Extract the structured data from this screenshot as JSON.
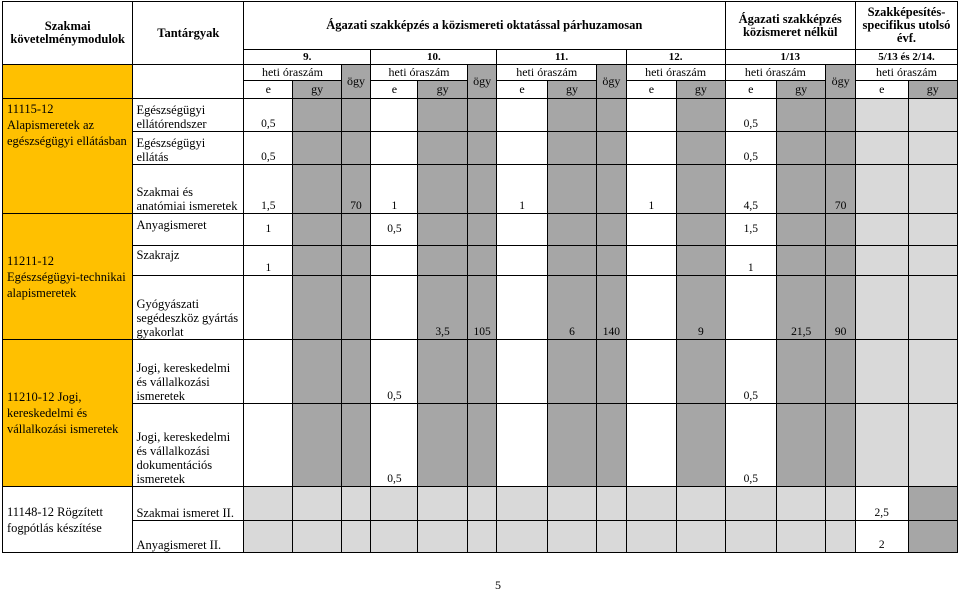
{
  "header": {
    "modules_title": "Szakmai követelménymodulok",
    "subjects_title": "Tantárgyak",
    "parallel_title": "Ágazati szakképzés a közismereti oktatással párhuzamosan",
    "without_title": "Ágazati szakképzés közismeret nélkül",
    "specific_title": "Szakképesítés-specifikus utolsó évf.",
    "grades": [
      "9.",
      "10.",
      "11.",
      "12.",
      "1/13",
      "5/13 és 2/14."
    ],
    "heti": "heti óraszám",
    "ogy": "ögy",
    "e": "e",
    "gy": "gy"
  },
  "modules": [
    "11115-12 Alapismeretek az egészségügyi ellátásban",
    "11211-12 Egészségügyi-technikai alapismeretek",
    "11210-12 Jogi, kereskedelmi és vállalkozási ismeretek",
    "11148-12 Rögzített fogpótlás készítése"
  ],
  "rows": [
    {
      "subject": "Egészségügyi ellátórendszer",
      "v9e": "0,5",
      "v113e": "0,5"
    },
    {
      "subject": "Egészségügyi ellátás",
      "v9e": "0,5",
      "v113e": "0,5"
    },
    {
      "subject": "Szakmai és anatómiai ismeretek",
      "v9e": "1,5",
      "ogy1": "70",
      "v10e": "1",
      "v11e": "1",
      "v12e": "1",
      "v113e": "4,5",
      "ogy113": "70"
    },
    {
      "subject": "Anyagismeret",
      "v9e": "1",
      "v10e": "0,5",
      "v113e": "1,5"
    },
    {
      "subject": "Szakrajz",
      "v9e": "1",
      "v113e": "1"
    },
    {
      "subject": "Gyógyászati segédeszköz gyártás gyakorlat",
      "v10gy": "3,5",
      "ogy2": "105",
      "v11gy": "6",
      "ogy3": "140",
      "v12gy": "9",
      "v113gy": "21,5",
      "ogy113": "90"
    },
    {
      "subject": "Jogi, kereskedelmi és vállalkozási ismeretek",
      "v10e": "0,5",
      "v113e": "0,5"
    },
    {
      "subject": "Jogi, kereskedelmi és vállalkozási dokumentációs ismeretek",
      "v10e": "0,5",
      "v113e": "0,5"
    },
    {
      "subject": "Szakmai ismeret II.",
      "v514e": "2,5"
    },
    {
      "subject": "Anyagismeret II.",
      "v514e": "2"
    }
  ],
  "page_number": "5"
}
